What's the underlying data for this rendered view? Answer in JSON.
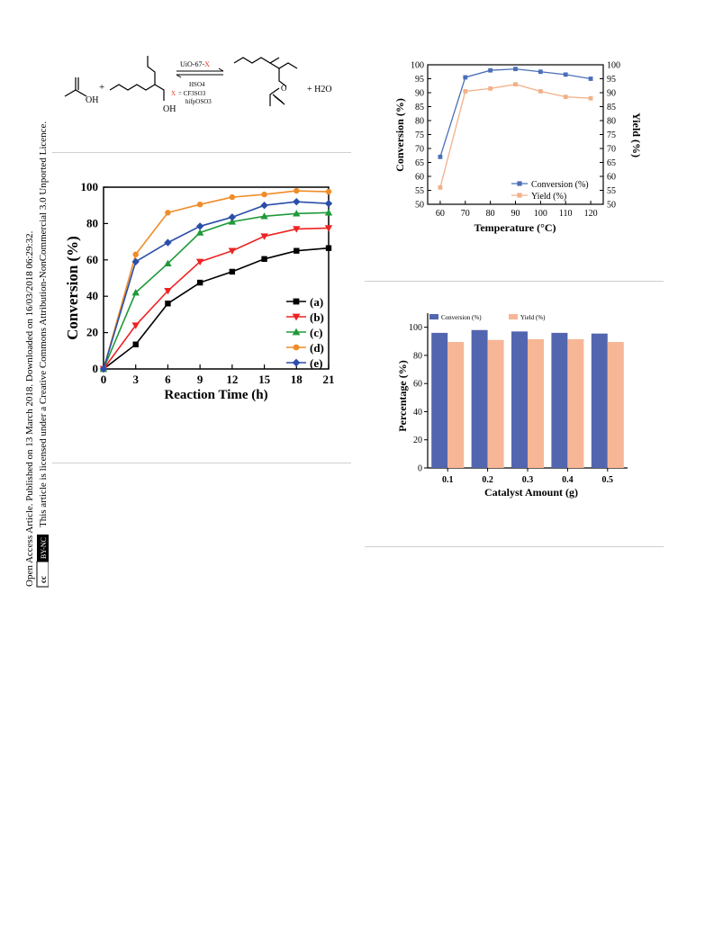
{
  "side_note": {
    "line1": "Open Access Article. Published on 13 March 2018. Downloaded on 16/03/2018 06:29:32.",
    "line2": "This article is licensed under a Creative Commons Attribution-NonCommercial 3.0 Unported Licence.",
    "badge_cc": "cc",
    "badge_text": "BY-NC"
  },
  "scheme": {
    "plus1": "+",
    "catalyst": "UiO-67-X",
    "anion1": "HSO4",
    "x_label": "X",
    "equals": "= CF3SO3",
    "anion3": "hifpOSO3",
    "oh1": "OH",
    "oh2": "OH",
    "o_label": "O",
    "plus_water": "+ H2O"
  },
  "chart_data": [
    {
      "type": "line",
      "xlabel": "Reaction Time (h)",
      "ylabel": "Conversion (%)",
      "x": [
        0,
        3,
        6,
        9,
        12,
        15,
        18,
        21
      ],
      "xlim": [
        0,
        21
      ],
      "ylim": [
        0,
        100
      ],
      "xticks": [
        "0",
        "3",
        "6",
        "9",
        "12",
        "15",
        "18",
        "21"
      ],
      "yticks": [
        "0",
        "20",
        "40",
        "60",
        "80",
        "100"
      ],
      "legend_position": "bottom-right",
      "series": [
        {
          "name": "(a)",
          "color": "#000000",
          "marker": "square",
          "values": [
            0,
            13.5,
            36,
            47.5,
            53.5,
            60.5,
            65,
            66.5
          ]
        },
        {
          "name": "(b)",
          "color": "#ee2222",
          "marker": "triangle-down",
          "values": [
            0,
            24,
            43,
            59,
            65,
            73,
            77,
            77.5
          ]
        },
        {
          "name": "(c)",
          "color": "#1f9a3a",
          "marker": "triangle-up",
          "values": [
            0,
            42,
            58,
            75,
            81,
            84,
            85.5,
            86
          ]
        },
        {
          "name": "(d)",
          "color": "#f08c28",
          "marker": "circle",
          "values": [
            0,
            63,
            86,
            90.5,
            94.5,
            96,
            98,
            97.5
          ]
        },
        {
          "name": "(e)",
          "color": "#2a4ea8",
          "marker": "diamond",
          "values": [
            0,
            59,
            69.5,
            78.5,
            83.5,
            90,
            92,
            91
          ]
        }
      ]
    },
    {
      "type": "line",
      "xlabel": "Temperature (°C)",
      "ylabel": "Conversion (%)",
      "ylabel_right": "Yield (%)",
      "x": [
        60,
        70,
        80,
        90,
        100,
        110,
        120
      ],
      "xlim": [
        55,
        125
      ],
      "ylim": [
        50,
        100
      ],
      "xticks": [
        "60",
        "70",
        "80",
        "90",
        "100",
        "110",
        "120"
      ],
      "yticks": [
        "50",
        "55",
        "60",
        "65",
        "70",
        "75",
        "80",
        "85",
        "90",
        "95",
        "100"
      ],
      "legend_position": "bottom-right",
      "series": [
        {
          "name": "Conversion (%)",
          "color": "#4a6fb8",
          "marker": "square",
          "values": [
            67,
            95.5,
            98,
            98.5,
            97.5,
            96.5,
            95
          ]
        },
        {
          "name": "Yield (%)",
          "color": "#f2b08a",
          "marker": "square",
          "values": [
            56,
            90.5,
            91.5,
            93,
            90.5,
            88.5,
            88
          ]
        }
      ]
    },
    {
      "type": "bar",
      "xlabel": "Catalyst Amount (g)",
      "ylabel": "Percentage (%)",
      "categories": [
        "0.1",
        "0.2",
        "0.3",
        "0.4",
        "0.5"
      ],
      "ylim": [
        0,
        110
      ],
      "yticks": [
        "0",
        "20",
        "40",
        "60",
        "80",
        "100"
      ],
      "legend_position": "top",
      "series": [
        {
          "name": "Conversion (%)",
          "color": "#5266b0",
          "values": [
            96,
            98,
            97,
            96,
            95.5
          ]
        },
        {
          "name": "Yield (%)",
          "color": "#f7b696",
          "values": [
            89.5,
            91,
            91.5,
            91.5,
            89.5
          ]
        }
      ]
    }
  ]
}
